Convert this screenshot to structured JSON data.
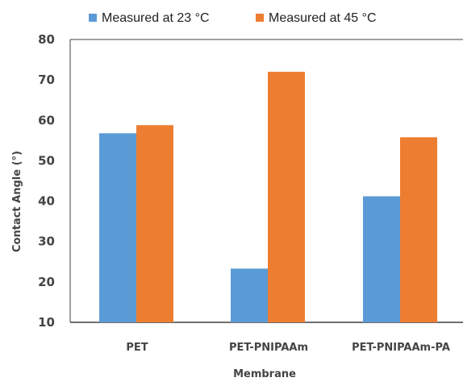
{
  "chart_data": {
    "type": "bar",
    "categories": [
      "PET",
      "PET-PNIPAAm",
      "PET-PNIPAAm-PA"
    ],
    "series": [
      {
        "name": "Measured at 23 °C",
        "color": "#5b9bd5",
        "values": [
          56.8,
          23.3,
          41.2
        ]
      },
      {
        "name": "Measured at 45 °C",
        "color": "#ed7d31",
        "values": [
          58.8,
          72.0,
          55.8
        ]
      }
    ],
    "xlabel": "Membrane",
    "ylabel": "Contact Angle (°)",
    "ylim": [
      10,
      80
    ],
    "yticks": [
      10,
      20,
      30,
      40,
      50,
      60,
      70,
      80
    ],
    "grid": false,
    "legend_position": "top"
  }
}
